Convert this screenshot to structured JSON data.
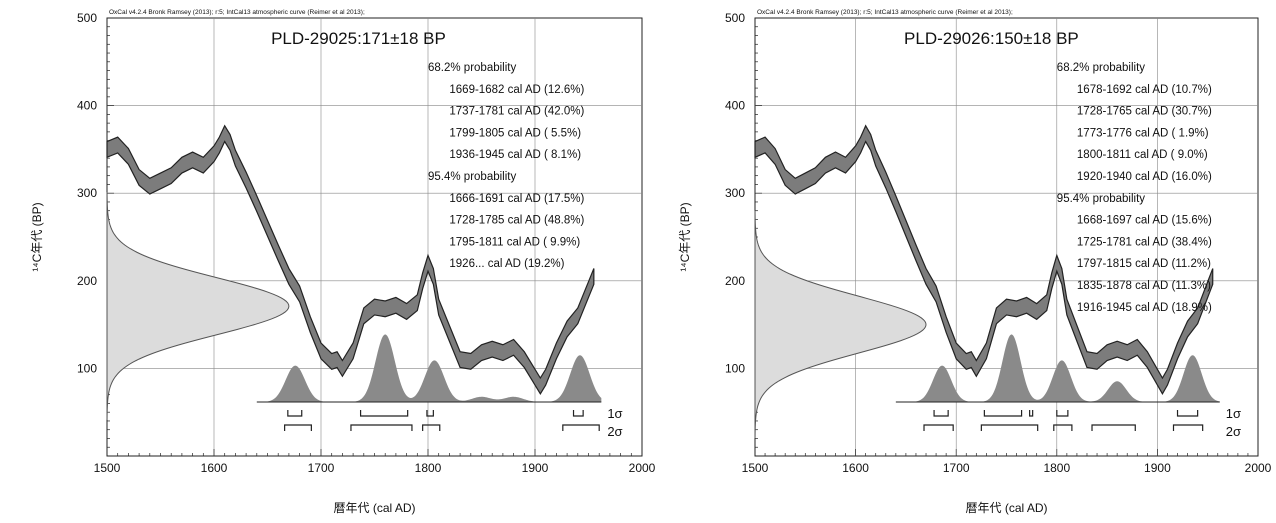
{
  "chart_data": [
    {
      "type": "line",
      "header": "OxCal v4.2.4 Bronk Ramsey (2013); r:5; IntCal13 atmospheric curve (Reimer et al 2013);",
      "title": "PLD-29025:171±18 BP",
      "xlabel": "暦年代 (cal AD)",
      "ylabel": "¹⁴C年代 (BP)",
      "xlim": [
        1500,
        2000
      ],
      "ylim": [
        0,
        500
      ],
      "xticks": [
        "1500",
        "1600",
        "1700",
        "1800",
        "1900",
        "2000"
      ],
      "yticks": [
        "100",
        "200",
        "300",
        "400",
        "500"
      ],
      "grid": true,
      "ranges_68": {
        "heading": "68.2% probability",
        "items": [
          "1669-1682 cal AD (12.6%)",
          "1737-1781 cal AD (42.0%)",
          "1799-1805 cal AD ( 5.5%)",
          "1936-1945 cal AD ( 8.1%)"
        ]
      },
      "ranges_95": {
        "heading": "95.4% probability",
        "items": [
          "1666-1691 cal AD (17.5%)",
          "1728-1785 cal AD (48.8%)",
          "1795-1811 cal AD ( 9.9%)",
          "1926... cal AD (19.2%)"
        ]
      },
      "sigma1_label": "1σ",
      "sigma2_label": "2σ",
      "measurement": {
        "mean": 171,
        "error": 18
      },
      "calibration_curve": [
        [
          1500,
          350
        ],
        [
          1510,
          355
        ],
        [
          1520,
          342
        ],
        [
          1530,
          318
        ],
        [
          1540,
          308
        ],
        [
          1550,
          314
        ],
        [
          1560,
          320
        ],
        [
          1570,
          332
        ],
        [
          1580,
          338
        ],
        [
          1590,
          332
        ],
        [
          1600,
          345
        ],
        [
          1605,
          355
        ],
        [
          1610,
          368
        ],
        [
          1615,
          358
        ],
        [
          1620,
          340
        ],
        [
          1630,
          315
        ],
        [
          1640,
          288
        ],
        [
          1650,
          260
        ],
        [
          1660,
          232
        ],
        [
          1670,
          205
        ],
        [
          1680,
          185
        ],
        [
          1690,
          150
        ],
        [
          1700,
          120
        ],
        [
          1710,
          108
        ],
        [
          1715,
          110
        ],
        [
          1720,
          100
        ],
        [
          1730,
          120
        ],
        [
          1740,
          160
        ],
        [
          1750,
          170
        ],
        [
          1760,
          168
        ],
        [
          1770,
          172
        ],
        [
          1780,
          165
        ],
        [
          1790,
          175
        ],
        [
          1795,
          200
        ],
        [
          1800,
          220
        ],
        [
          1805,
          205
        ],
        [
          1810,
          170
        ],
        [
          1820,
          140
        ],
        [
          1830,
          110
        ],
        [
          1840,
          108
        ],
        [
          1850,
          118
        ],
        [
          1860,
          122
        ],
        [
          1870,
          118
        ],
        [
          1880,
          124
        ],
        [
          1890,
          110
        ],
        [
          1900,
          90
        ],
        [
          1905,
          80
        ],
        [
          1910,
          90
        ],
        [
          1920,
          120
        ],
        [
          1930,
          145
        ],
        [
          1940,
          160
        ],
        [
          1950,
          190
        ],
        [
          1955,
          205
        ]
      ],
      "probability_peaks": [
        [
          1676,
          14
        ],
        [
          1760,
          26
        ],
        [
          1806,
          16
        ],
        [
          1850,
          2
        ],
        [
          1880,
          2
        ],
        [
          1942,
          18
        ]
      ],
      "sigma1_brackets": [
        [
          1669,
          1682
        ],
        [
          1737,
          1781
        ],
        [
          1799,
          1805
        ],
        [
          1936,
          1945
        ]
      ],
      "sigma2_brackets": [
        [
          1666,
          1691
        ],
        [
          1728,
          1785
        ],
        [
          1795,
          1811
        ],
        [
          1926,
          1960
        ]
      ]
    },
    {
      "type": "line",
      "header": "OxCal v4.2.4 Bronk Ramsey (2013); r:5; IntCal13 atmospheric curve (Reimer et al 2013);",
      "title": "PLD-29026:150±18 BP",
      "xlabel": "暦年代 (cal AD)",
      "ylabel": "¹⁴C年代 (BP)",
      "xlim": [
        1500,
        2000
      ],
      "ylim": [
        0,
        500
      ],
      "xticks": [
        "1500",
        "1600",
        "1700",
        "1800",
        "1900",
        "2000"
      ],
      "yticks": [
        "100",
        "200",
        "300",
        "400",
        "500"
      ],
      "grid": true,
      "ranges_68": {
        "heading": "68.2% probability",
        "items": [
          "1678-1692 cal AD (10.7%)",
          "1728-1765 cal AD (30.7%)",
          "1773-1776 cal AD ( 1.9%)",
          "1800-1811 cal AD ( 9.0%)",
          "1920-1940 cal AD (16.0%)"
        ]
      },
      "ranges_95": {
        "heading": "95.4% probability",
        "items": [
          "1668-1697 cal AD (15.6%)",
          "1725-1781 cal AD (38.4%)",
          "1797-1815 cal AD (11.2%)",
          "1835-1878 cal AD (11.3%)",
          "1916-1945 cal AD (18.9%)"
        ]
      },
      "sigma1_label": "1σ",
      "sigma2_label": "2σ",
      "measurement": {
        "mean": 150,
        "error": 18
      },
      "calibration_curve": [
        [
          1500,
          350
        ],
        [
          1510,
          355
        ],
        [
          1520,
          342
        ],
        [
          1530,
          318
        ],
        [
          1540,
          308
        ],
        [
          1550,
          314
        ],
        [
          1560,
          320
        ],
        [
          1570,
          332
        ],
        [
          1580,
          338
        ],
        [
          1590,
          332
        ],
        [
          1600,
          345
        ],
        [
          1605,
          355
        ],
        [
          1610,
          368
        ],
        [
          1615,
          358
        ],
        [
          1620,
          340
        ],
        [
          1630,
          315
        ],
        [
          1640,
          288
        ],
        [
          1650,
          260
        ],
        [
          1660,
          232
        ],
        [
          1670,
          205
        ],
        [
          1680,
          185
        ],
        [
          1690,
          150
        ],
        [
          1700,
          120
        ],
        [
          1710,
          108
        ],
        [
          1715,
          110
        ],
        [
          1720,
          100
        ],
        [
          1730,
          120
        ],
        [
          1740,
          160
        ],
        [
          1750,
          170
        ],
        [
          1760,
          168
        ],
        [
          1770,
          172
        ],
        [
          1780,
          165
        ],
        [
          1790,
          175
        ],
        [
          1795,
          200
        ],
        [
          1800,
          220
        ],
        [
          1805,
          205
        ],
        [
          1810,
          170
        ],
        [
          1820,
          140
        ],
        [
          1830,
          110
        ],
        [
          1840,
          108
        ],
        [
          1850,
          118
        ],
        [
          1860,
          122
        ],
        [
          1870,
          118
        ],
        [
          1880,
          124
        ],
        [
          1890,
          110
        ],
        [
          1900,
          90
        ],
        [
          1905,
          80
        ],
        [
          1910,
          90
        ],
        [
          1920,
          120
        ],
        [
          1930,
          145
        ],
        [
          1940,
          160
        ],
        [
          1950,
          190
        ],
        [
          1955,
          205
        ]
      ],
      "probability_peaks": [
        [
          1686,
          14
        ],
        [
          1755,
          26
        ],
        [
          1805,
          16
        ],
        [
          1860,
          8
        ],
        [
          1935,
          18
        ]
      ],
      "sigma1_brackets": [
        [
          1678,
          1692
        ],
        [
          1728,
          1765
        ],
        [
          1773,
          1776
        ],
        [
          1800,
          1811
        ],
        [
          1920,
          1940
        ]
      ],
      "sigma2_brackets": [
        [
          1668,
          1697
        ],
        [
          1725,
          1781
        ],
        [
          1797,
          1815
        ],
        [
          1835,
          1878
        ],
        [
          1916,
          1945
        ]
      ]
    }
  ]
}
